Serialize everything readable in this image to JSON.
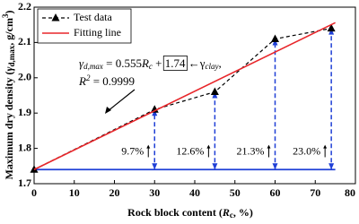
{
  "chart_data": {
    "type": "line",
    "xlabel": {
      "text": "Rock block content (",
      "var": "R",
      "sub": "c",
      "rest": ", %)"
    },
    "ylabel": {
      "text": "Maximum dry density (",
      "var": "γ",
      "sub": "d,max",
      "rest": ", g/cm",
      "sup": "3",
      "end": ")"
    },
    "xlim": [
      0,
      80
    ],
    "xticks": [
      0,
      10,
      20,
      30,
      40,
      50,
      60,
      70,
      80
    ],
    "ylim": [
      1.7,
      2.2
    ],
    "yticks": [
      1.7,
      1.8,
      1.9,
      {
        "value": 2,
        "label": "2.0"
      },
      2.1,
      2.2
    ],
    "legend": "upper left",
    "series": [
      {
        "name": "Test data",
        "color": "#000000",
        "marker": "triangle",
        "dashed": true,
        "x": [
          0,
          30,
          45,
          60,
          74
        ],
        "values": [
          1.74,
          1.91,
          1.96,
          2.11,
          2.14
        ]
      },
      {
        "name": "Fitting line",
        "color": "#e8262a",
        "x": [
          0,
          75
        ],
        "values": [
          1.74,
          2.156
        ]
      }
    ],
    "baseline": {
      "color": "#1f3fd6",
      "value": 1.74,
      "x": [
        0,
        75
      ]
    },
    "increase_labels": [
      "9.7%",
      "12.6%",
      "21.3%",
      "23.0%"
    ],
    "equation": {
      "lhs": "γ",
      "lhs_sub": "d,max",
      "eq": " = 0.555",
      "var": "R",
      "var_sub": "c",
      "plus": " + ",
      "boxed": "1.74",
      "arrow": " ←γ",
      "arrow_sub": "clay",
      "comma": ",",
      "r2_var": "R",
      "r2_sup": "2",
      "r2_rest": " = 0.9999"
    }
  }
}
